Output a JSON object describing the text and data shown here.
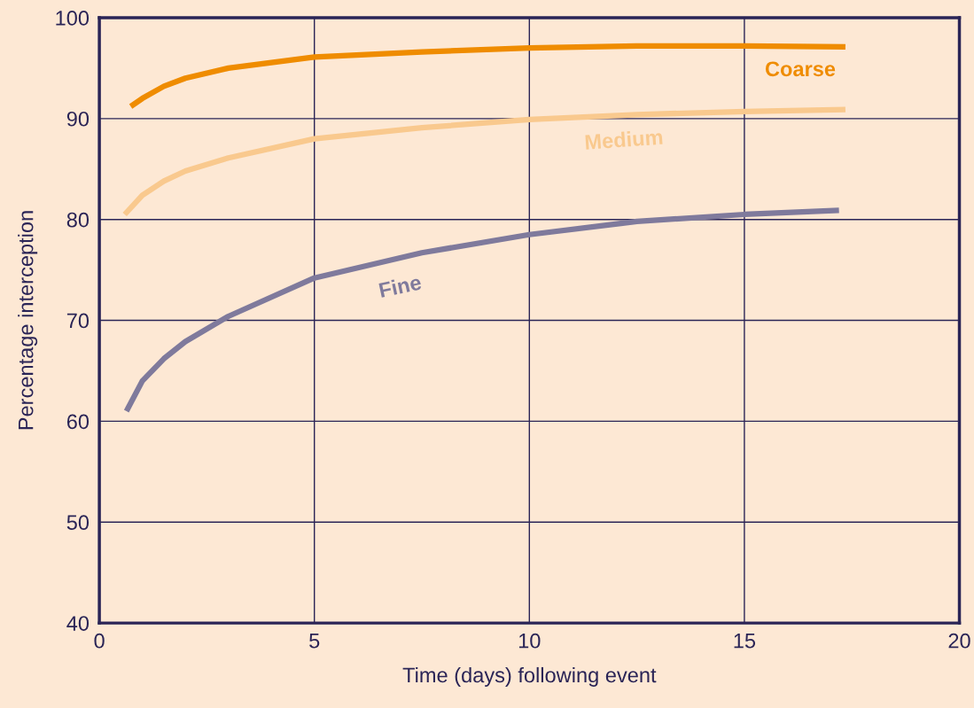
{
  "chart_data": {
    "type": "line",
    "xlabel": "Time (days) following event",
    "ylabel": "Percentage interception",
    "xlim": [
      0,
      20
    ],
    "xticks": [
      0,
      5,
      10,
      15,
      20
    ],
    "ylim": [
      40,
      100
    ],
    "yticks": [
      40,
      50,
      60,
      70,
      80,
      90,
      100
    ],
    "grid": true,
    "legend": false,
    "marker": "none",
    "line_style": "solid",
    "series": [
      {
        "name": "Coarse",
        "color": "#ef8c00",
        "x": [
          0.73,
          1,
          1.5,
          2,
          3,
          5,
          7.5,
          10,
          12.5,
          15,
          17.35
        ],
        "values": [
          91.2,
          92.0,
          93.2,
          94.0,
          95.0,
          96.1,
          96.6,
          97.0,
          97.2,
          97.2,
          97.1
        ]
      },
      {
        "name": "Medium",
        "color": "#f9c98e",
        "x": [
          0.59,
          1,
          1.5,
          2,
          3,
          5,
          7.5,
          10,
          12.5,
          15,
          17.35
        ],
        "values": [
          80.5,
          82.4,
          83.8,
          84.8,
          86.1,
          88.0,
          89.1,
          89.9,
          90.4,
          90.7,
          90.9
        ]
      },
      {
        "name": "Fine",
        "color": "#7f7a9c",
        "x": [
          0.63,
          1,
          1.5,
          2,
          3,
          5,
          7.5,
          10,
          12.5,
          15,
          17.2
        ],
        "values": [
          61.0,
          64.0,
          66.2,
          67.9,
          70.4,
          74.2,
          76.7,
          78.5,
          79.8,
          80.5,
          80.9
        ]
      }
    ]
  }
}
